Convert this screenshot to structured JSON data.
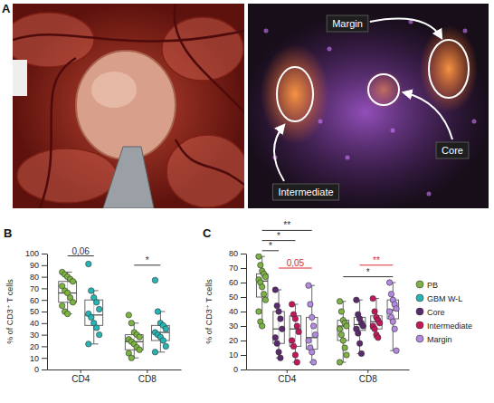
{
  "image_panel": {
    "panel": "A",
    "labels": {
      "margin": "Margin",
      "intermediate": "Intermediate",
      "core": "Core"
    }
  },
  "chart_data": [
    {
      "type": "box",
      "panel": "B",
      "y_label": "% of CD3⁺ T cells",
      "categories": [
        "CD4",
        "CD8"
      ],
      "ylim": [
        0,
        100
      ],
      "yticks": [
        0,
        10,
        20,
        30,
        40,
        50,
        60,
        70,
        80,
        90,
        100
      ],
      "series": [
        {
          "name": "PB",
          "color": "#7cb342",
          "values": [
            [
              84,
              82,
              80,
              78,
              76,
              72,
              68,
              66,
              62,
              58,
              55,
              50,
              48
            ],
            [
              47,
              40,
              32,
              30,
              28,
              26,
              24,
              22,
              19,
              17,
              14,
              10
            ]
          ],
          "boxes": [
            {
              "min": 48,
              "q1": 58,
              "median": 66,
              "q3": 76,
              "max": 84
            },
            {
              "min": 10,
              "q1": 17,
              "median": 24,
              "q3": 30,
              "max": 40
            }
          ]
        },
        {
          "name": "GBM W-L",
          "color": "#26b5b5",
          "values": [
            [
              91,
              68,
              62,
              58,
              52,
              48,
              45,
              40,
              36,
              30,
              22
            ],
            [
              77,
              50,
              40,
              38,
              35,
              32,
              30,
              28,
              25,
              20,
              15
            ]
          ],
          "boxes": [
            {
              "min": 22,
              "q1": 38,
              "median": 47,
              "q3": 60,
              "max": 68
            },
            {
              "min": 15,
              "q1": 25,
              "median": 32,
              "q3": 38,
              "max": 50
            }
          ]
        }
      ],
      "annotations": [
        {
          "text": "0,06",
          "category": "CD4",
          "from": "PB",
          "to": "GBM W-L",
          "y": 98,
          "color": "#333333"
        },
        {
          "text": "*",
          "category": "CD8",
          "from": "PB",
          "to": "GBM W-L",
          "y": 90,
          "color": "#333333"
        }
      ]
    },
    {
      "type": "box",
      "panel": "C",
      "y_label": "% of CD3⁺ T cells",
      "categories": [
        "CD4",
        "CD8"
      ],
      "ylim": [
        0,
        80
      ],
      "yticks": [
        0,
        10,
        20,
        30,
        40,
        50,
        60,
        70,
        80
      ],
      "legend": "right",
      "series": [
        {
          "name": "PB",
          "color": "#7cb342",
          "values": [
            [
              78,
              72,
              68,
              66,
              64,
              62,
              60,
              57,
              52,
              48,
              40,
              33,
              30
            ],
            [
              47,
              40,
              34,
              32,
              30,
              28,
              24,
              20,
              15,
              10,
              5
            ]
          ],
          "boxes": [
            {
              "min": 30,
              "q1": 50,
              "median": 61,
              "q3": 66,
              "max": 78
            },
            {
              "min": 5,
              "q1": 20,
              "median": 30,
              "q3": 34,
              "max": 47
            }
          ]
        },
        {
          "name": "Core",
          "color": "#5b2a6e",
          "values": [
            [
              55,
              44,
              40,
              35,
              28,
              22,
              18,
              12,
              8
            ],
            [
              48,
              38,
              35,
              32,
              30,
              28,
              25,
              18,
              11
            ]
          ],
          "boxes": [
            {
              "min": 8,
              "q1": 18,
              "median": 28,
              "q3": 40,
              "max": 55
            },
            {
              "min": 11,
              "q1": 27,
              "median": 31,
              "q3": 36,
              "max": 48
            }
          ]
        },
        {
          "name": "Intermediate",
          "color": "#c2185b",
          "values": [
            [
              45,
              38,
              35,
              30,
              26,
              20,
              16,
              10,
              5
            ],
            [
              49,
              40,
              36,
              34,
              32,
              30,
              28,
              24,
              22
            ]
          ],
          "boxes": [
            {
              "min": 5,
              "q1": 16,
              "median": 28,
              "q3": 37,
              "max": 45
            },
            {
              "min": 22,
              "q1": 28,
              "median": 33,
              "q3": 37,
              "max": 49
            }
          ]
        },
        {
          "name": "Margin",
          "color": "#b48ae0",
          "values": [
            [
              58,
              45,
              36,
              30,
              24,
              20,
              15,
              12,
              5
            ],
            [
              60,
              52,
              48,
              45,
              42,
              40,
              36,
              33,
              28,
              13
            ]
          ],
          "boxes": [
            {
              "min": 5,
              "q1": 14,
              "median": 22,
              "q3": 36,
              "max": 58
            },
            {
              "min": 13,
              "q1": 35,
              "median": 41,
              "q3": 48,
              "max": 60
            }
          ]
        }
      ],
      "annotations": [
        {
          "text": "*",
          "category": "CD4",
          "from": "PB",
          "to": "Core",
          "y": 82,
          "color": "#333333"
        },
        {
          "text": "*",
          "category": "CD4",
          "from": "PB",
          "to": "Intermediate",
          "y": 89,
          "color": "#333333"
        },
        {
          "text": "**",
          "category": "CD4",
          "from": "PB",
          "to": "Margin",
          "y": 96,
          "color": "#333333"
        },
        {
          "text": "0,05",
          "category": "CD4",
          "from": "Core",
          "to": "Margin",
          "y": 70,
          "color": "#e0282e"
        },
        {
          "text": "**",
          "category": "CD8",
          "from": "Core",
          "to": "Margin",
          "y": 72,
          "color": "#e0282e"
        },
        {
          "text": "*",
          "category": "CD8",
          "from": "PB",
          "to": "Margin",
          "y": 64,
          "color": "#333333"
        }
      ]
    }
  ]
}
